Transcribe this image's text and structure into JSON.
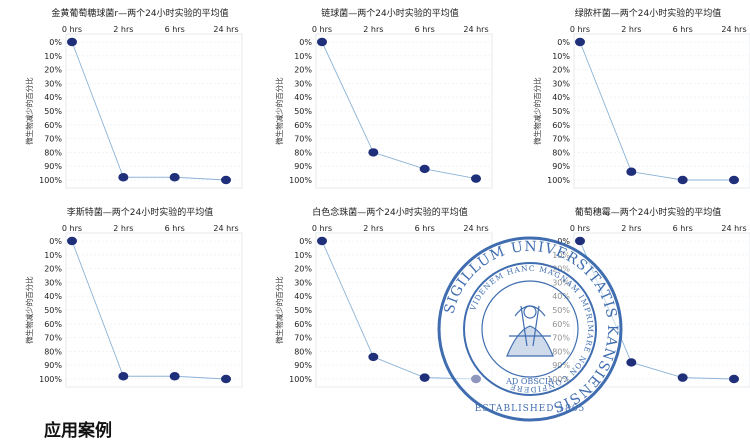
{
  "caption": "应用案例",
  "chart_data": [
    {
      "type": "line",
      "title": "金黄葡萄糖球菌r—两个24小时实验的平均值",
      "ylabel": "微生物减少的百分比",
      "categories": [
        "0 hrs",
        "2 hrs",
        "6 hrs",
        "24 hrs"
      ],
      "values": [
        0,
        98,
        98,
        100
      ],
      "yticks": [
        "0%",
        "10%",
        "20%",
        "30%",
        "40%",
        "50%",
        "60%",
        "70%",
        "80%",
        "90%",
        "100%"
      ],
      "ylim": [
        0,
        100
      ],
      "y_inverted": true,
      "grid": true,
      "colors": {
        "point": "#1f2f7a",
        "line": "#8db3d6"
      }
    },
    {
      "type": "line",
      "title": "链球菌—两个24小时实验的平均值",
      "ylabel": "微生物减少的百分比",
      "categories": [
        "0 hrs",
        "2 hrs",
        "6 hrs",
        "24 hrs"
      ],
      "values": [
        0,
        80,
        92,
        99
      ],
      "yticks": [
        "0%",
        "10%",
        "20%",
        "30%",
        "40%",
        "50%",
        "60%",
        "70%",
        "80%",
        "90%",
        "100%"
      ],
      "ylim": [
        0,
        100
      ],
      "y_inverted": true,
      "grid": true,
      "colors": {
        "point": "#1f2f7a",
        "line": "#8db3d6"
      }
    },
    {
      "type": "line",
      "title": "绿脓杆菌—两个24小时实验的平均值",
      "ylabel": "微生物减少的百分比",
      "categories": [
        "0 hrs",
        "2 hrs",
        "6 hrs",
        "24 hrs"
      ],
      "values": [
        0,
        94,
        100,
        100
      ],
      "yticks": [
        "0%",
        "10%",
        "20%",
        "30%",
        "40%",
        "50%",
        "60%",
        "70%",
        "80%",
        "90%",
        "100%"
      ],
      "ylim": [
        0,
        100
      ],
      "y_inverted": true,
      "grid": true,
      "colors": {
        "point": "#1f2f7a",
        "line": "#8db3d6"
      }
    },
    {
      "type": "line",
      "title": "李斯特菌—两个24小时实验的平均值",
      "ylabel": "微生物减少的百分比",
      "categories": [
        "0 hrs",
        "2 hrs",
        "6 hrs",
        "24 hrs"
      ],
      "values": [
        0,
        98,
        98,
        100
      ],
      "yticks": [
        "0%",
        "10%",
        "20%",
        "30%",
        "40%",
        "50%",
        "60%",
        "70%",
        "80%",
        "90%",
        "100%"
      ],
      "ylim": [
        0,
        100
      ],
      "y_inverted": true,
      "grid": true,
      "colors": {
        "point": "#1f2f7a",
        "line": "#8db3d6"
      }
    },
    {
      "type": "line",
      "title": "白色念珠菌—两个24小时实验的平均值",
      "ylabel": "微生物减少的百分比",
      "categories": [
        "0 hrs",
        "2 hrs",
        "6 hrs",
        "24 hrs"
      ],
      "values": [
        0,
        84,
        99,
        100
      ],
      "yticks": [
        "0%",
        "10%",
        "20%",
        "30%",
        "40%",
        "50%",
        "60%",
        "70%",
        "80%",
        "90%",
        "100%"
      ],
      "ylim": [
        0,
        100
      ],
      "y_inverted": true,
      "grid": true,
      "colors": {
        "point": "#1f2f7a",
        "line": "#8db3d6"
      }
    },
    {
      "type": "line",
      "title": "葡萄穗霉—两个24小时实验的平均值",
      "ylabel": "",
      "categories": [
        "0 hrs",
        "2 hrs",
        "6 hrs",
        "24 hrs"
      ],
      "values": [
        0,
        88,
        99,
        100
      ],
      "yticks": [
        "0%",
        "10%",
        "20%",
        "30%",
        "40%",
        "50%",
        "60%",
        "70%",
        "80%",
        "90%",
        "100%"
      ],
      "ylim": [
        0,
        100
      ],
      "y_inverted": true,
      "grid": true,
      "colors": {
        "point": "#1f2f7a",
        "line": "#8db3d6"
      }
    }
  ],
  "seal": {
    "outer_text": "SIGILLUM UNIVERSITATIS KANSIENSIS",
    "inner_text": "VIDENEM HANC MAGNAM IMPRIMARE NON CONFIDERE",
    "motto": "AD OBSCIA",
    "established": "ESTABLISHED 1865",
    "color": "#2b5ea8"
  }
}
